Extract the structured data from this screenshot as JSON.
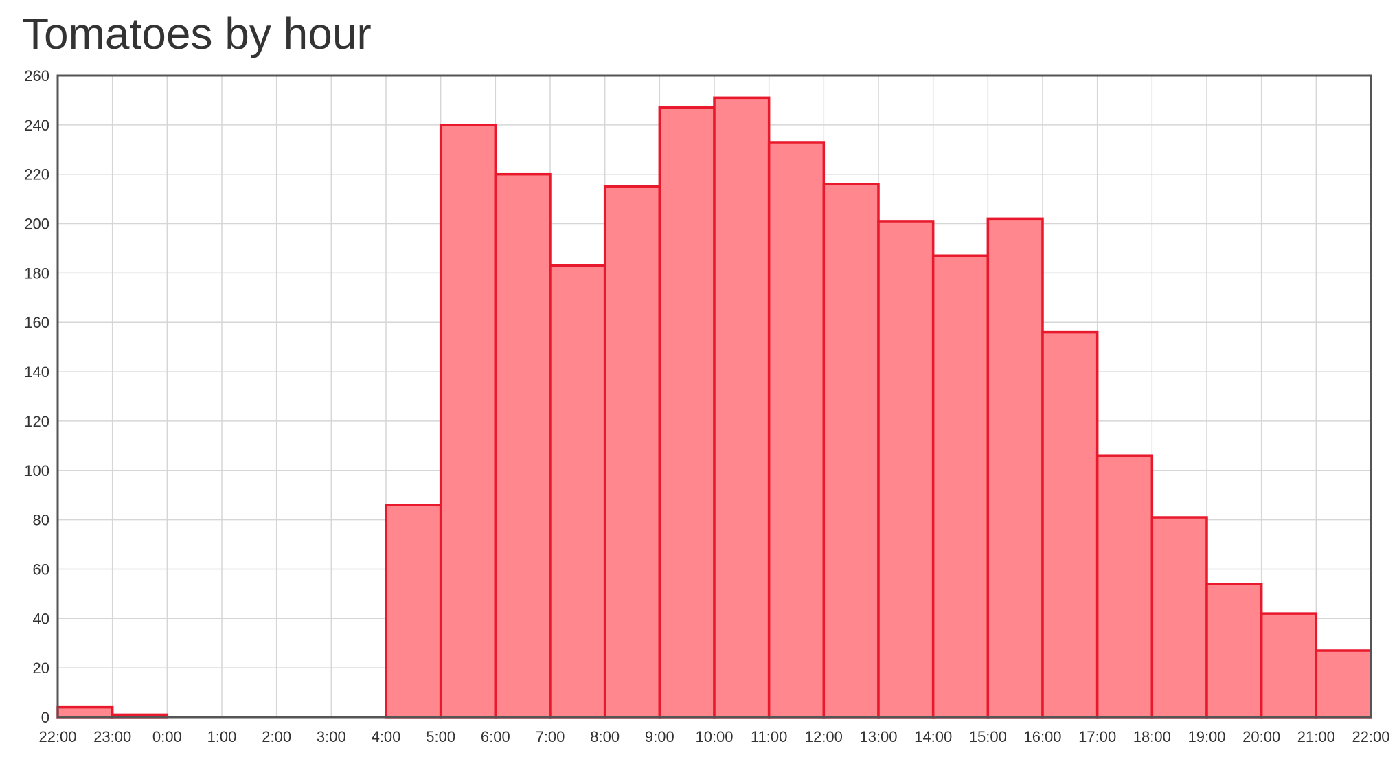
{
  "chart_data": {
    "type": "bar",
    "title": "Tomatoes by hour",
    "xlabel": "",
    "ylabel": "",
    "x_tick_labels": [
      "22:00",
      "23:00",
      "0:00",
      "1:00",
      "2:00",
      "3:00",
      "4:00",
      "5:00",
      "6:00",
      "7:00",
      "8:00",
      "9:00",
      "10:00",
      "11:00",
      "12:00",
      "13:00",
      "14:00",
      "15:00",
      "16:00",
      "17:00",
      "18:00",
      "19:00",
      "20:00",
      "21:00",
      "22:00"
    ],
    "categories": [
      "22:00",
      "23:00",
      "0:00",
      "1:00",
      "2:00",
      "3:00",
      "4:00",
      "5:00",
      "6:00",
      "7:00",
      "8:00",
      "9:00",
      "10:00",
      "11:00",
      "12:00",
      "13:00",
      "14:00",
      "15:00",
      "16:00",
      "17:00",
      "18:00",
      "19:00",
      "20:00",
      "21:00"
    ],
    "values": [
      4,
      1,
      0,
      0,
      0,
      0,
      86,
      240,
      220,
      183,
      215,
      247,
      251,
      233,
      216,
      201,
      187,
      202,
      156,
      106,
      81,
      54,
      42,
      27
    ],
    "y_ticks": [
      0,
      20,
      40,
      60,
      80,
      100,
      120,
      140,
      160,
      180,
      200,
      220,
      240,
      260
    ],
    "ylim": [
      0,
      260
    ],
    "grid": true,
    "legend": "none",
    "colors": {
      "bar_fill": "#ff878d",
      "bar_stroke": "#e8192c",
      "grid": "#d6d6d6",
      "axis": "#555555",
      "text": "#333333"
    }
  }
}
